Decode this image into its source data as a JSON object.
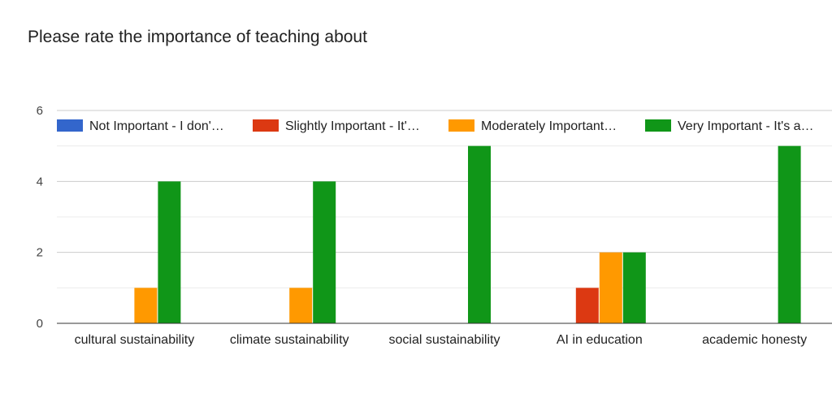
{
  "chart_data": {
    "type": "bar",
    "title": "Please rate the importance of teaching about",
    "xlabel": "",
    "ylabel": "",
    "ylim": [
      0,
      6
    ],
    "yticks": [
      0,
      2,
      4,
      6
    ],
    "grid": true,
    "legend_position": "top",
    "categories": [
      "cultural sustainability",
      "climate sustainability",
      "social sustainability",
      "AI in education",
      "academic honesty"
    ],
    "series": [
      {
        "name": "Not Important - I don'…",
        "color": "#3366cc",
        "values": [
          0,
          0,
          0,
          0,
          0
        ]
      },
      {
        "name": "Slightly Important - It'…",
        "color": "#dc3912",
        "values": [
          0,
          0,
          0,
          1,
          0
        ]
      },
      {
        "name": "Moderately Important…",
        "color": "#ff9900",
        "values": [
          1,
          1,
          0,
          2,
          0
        ]
      },
      {
        "name": "Very Important - It's a…",
        "color": "#109618",
        "values": [
          4,
          4,
          5,
          2,
          5
        ]
      }
    ]
  }
}
